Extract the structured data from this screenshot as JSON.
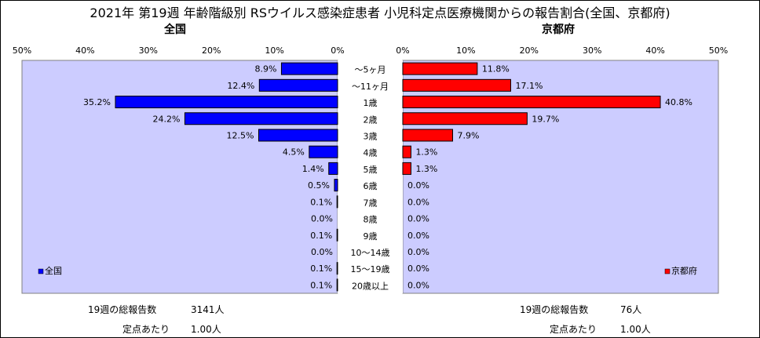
{
  "title": "2021年 第19週 年齢階級別 RSウイルス感染症患者 小児科定点医療機関からの報告割合(全国、京都府)",
  "left_subtitle": "全国",
  "right_subtitle": "京都府",
  "left_ticks": [
    "50%",
    "40%",
    "30%",
    "20%",
    "10%",
    "0%"
  ],
  "right_ticks": [
    "0%",
    "10%",
    "20%",
    "30%",
    "40%",
    "50%"
  ],
  "colors": {
    "national": "#0000ff",
    "kyoto": "#ff0000",
    "plot_bg": "#ccccff"
  },
  "chart_data": {
    "type": "bar",
    "orientation": "horizontal",
    "layout": "population-pyramid",
    "categories": [
      "～5ヶ月",
      "～11ヶ月",
      "1歳",
      "2歳",
      "3歳",
      "4歳",
      "5歳",
      "6歳",
      "7歳",
      "8歳",
      "9歳",
      "10～14歳",
      "15～19歳",
      "20歳以上"
    ],
    "series": [
      {
        "name": "全国",
        "side": "left",
        "values": [
          8.9,
          12.4,
          35.2,
          24.2,
          12.5,
          4.5,
          1.4,
          0.5,
          0.1,
          0.0,
          0.1,
          0.0,
          0.1,
          0.1
        ],
        "labels": [
          "8.9%",
          "12.4%",
          "35.2%",
          "24.2%",
          "12.5%",
          "4.5%",
          "1.4%",
          "0.5%",
          "0.1%",
          "0.0%",
          "0.1%",
          "0.0%",
          "0.1%",
          "0.1%"
        ]
      },
      {
        "name": "京都府",
        "side": "right",
        "values": [
          11.8,
          17.1,
          40.8,
          19.7,
          7.9,
          1.3,
          1.3,
          0.0,
          0.0,
          0.0,
          0.0,
          0.0,
          0.0,
          0.0
        ],
        "labels": [
          "11.8%",
          "17.1%",
          "40.8%",
          "19.7%",
          "7.9%",
          "1.3%",
          "1.3%",
          "0.0%",
          "0.0%",
          "0.0%",
          "0.0%",
          "0.0%",
          "0.0%",
          "0.0%"
        ]
      }
    ],
    "xlim": [
      0,
      50
    ],
    "legend": [
      "全国",
      "京都府"
    ]
  },
  "footer": {
    "national": {
      "total_label": "19週の総報告数",
      "total_value": "3141人",
      "per_label": "定点あたり",
      "per_value": "1.00人"
    },
    "kyoto": {
      "total_label": "19週の総報告数",
      "total_value": "76人",
      "per_label": "定点あたり",
      "per_value": "1.00人"
    }
  }
}
